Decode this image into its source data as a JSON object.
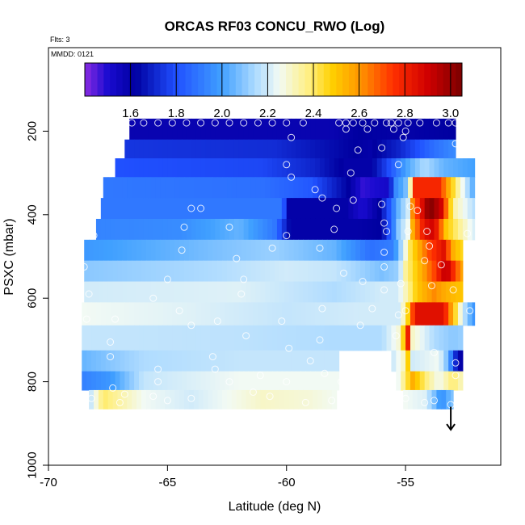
{
  "chart_data": {
    "type": "heatmap",
    "title": "ORCAS RF03 CONCU_RWO (Log)",
    "flts_note": "Flts: 3",
    "date_note": "MMDD: 0121",
    "xlabel": "Latitude (deg N)",
    "ylabel": "PSXC (mbar)",
    "xlim": [
      -70,
      -51
    ],
    "ylim": [
      1000,
      0
    ],
    "x_ticks": [
      -70,
      -65,
      -60,
      -55
    ],
    "y_ticks": [
      200,
      400,
      600,
      800,
      1000
    ],
    "colorbar": {
      "range": [
        1.4,
        3.05
      ],
      "ticks": [
        1.6,
        1.8,
        2.0,
        2.2,
        2.4,
        2.6,
        2.8,
        3.0
      ],
      "tick_labels": [
        "1.6",
        "1.8",
        "2.0",
        "2.2",
        "2.4",
        "2.6",
        "2.8",
        "3.0"
      ],
      "stops": [
        {
          "v": 1.4,
          "c": "#8a2be2"
        },
        {
          "v": 1.5,
          "c": "#1a0bd0"
        },
        {
          "v": 1.62,
          "c": "#0000a0"
        },
        {
          "v": 1.8,
          "c": "#2050ff"
        },
        {
          "v": 2.0,
          "c": "#40a0ff"
        },
        {
          "v": 2.15,
          "c": "#b0dcff"
        },
        {
          "v": 2.25,
          "c": "#f2faf4"
        },
        {
          "v": 2.38,
          "c": "#ffef80"
        },
        {
          "v": 2.48,
          "c": "#ffd000"
        },
        {
          "v": 2.6,
          "c": "#ff9800"
        },
        {
          "v": 2.75,
          "c": "#ff3000"
        },
        {
          "v": 2.9,
          "c": "#d00000"
        },
        {
          "v": 3.05,
          "c": "#7a0000"
        }
      ]
    },
    "rows": [
      {
        "p": [
          170,
          220
        ],
        "x": [
          -66.6,
          -52.9
        ],
        "k": [
          -66.6,
          1.58,
          -58,
          1.58,
          -57,
          1.62,
          -55,
          1.6,
          -52.9,
          1.62
        ]
      },
      {
        "p": [
          220,
          265
        ],
        "x": [
          -66.8,
          -52.9
        ],
        "k": [
          -66.8,
          1.74,
          -60.5,
          1.72,
          -58.5,
          1.66,
          -56.5,
          1.6,
          -55.3,
          1.7,
          -53.8,
          1.88,
          -52.9,
          1.95
        ]
      },
      {
        "p": [
          265,
          310
        ],
        "x": [
          -67.2,
          -52.1
        ],
        "k": [
          -67.2,
          1.8,
          -61,
          1.78,
          -58.8,
          1.7,
          -57.5,
          1.6,
          -56.5,
          1.6,
          -55.6,
          1.82,
          -55,
          2.0,
          -54.2,
          2.15,
          -53.4,
          2.05,
          -52.1,
          2.0
        ]
      },
      {
        "p": [
          310,
          360
        ],
        "x": [
          -67.7,
          -52.1
        ],
        "k": [
          -67.7,
          1.9,
          -61,
          1.88,
          -59,
          1.82,
          -57.4,
          1.62,
          -56.8,
          1.48,
          -55.8,
          1.52,
          -55.4,
          1.95,
          -54.9,
          2.1,
          -54.6,
          2.78,
          -53.6,
          2.78,
          -53.0,
          2.45,
          -52.1,
          2.0
        ]
      },
      {
        "p": [
          360,
          410
        ],
        "x": [
          -67.8,
          -52.1
        ],
        "k": [
          -67.8,
          1.9,
          -60.2,
          1.9,
          -59.9,
          1.6,
          -57.5,
          1.6,
          -56.8,
          1.5,
          -56.1,
          1.62,
          -55.7,
          1.8,
          -55.3,
          2.05,
          -54.9,
          2.2,
          -54.7,
          2.62,
          -54.0,
          3.05,
          -53.5,
          2.9,
          -53.0,
          2.35,
          -52.1,
          2.15
        ]
      },
      {
        "p": [
          410,
          460
        ],
        "x": [
          -68.0,
          -52.1
        ],
        "k": [
          -68.0,
          1.93,
          -64.5,
          1.95,
          -62,
          2.05,
          -60.5,
          1.9,
          -59.8,
          1.6,
          -57,
          1.6,
          -56,
          1.62,
          -55.6,
          1.85,
          -55.3,
          2.1,
          -54.9,
          2.25,
          -54.7,
          2.55,
          -54.2,
          2.85,
          -53.8,
          2.9,
          -53.3,
          2.5,
          -52.1,
          2.2
        ]
      },
      {
        "p": [
          460,
          510
        ],
        "x": [
          -68.5,
          -52.6
        ],
        "k": [
          -68.5,
          1.98,
          -63,
          2.08,
          -60.5,
          2.12,
          -58,
          2.05,
          -56.5,
          1.88,
          -55.5,
          1.92,
          -55.1,
          2.2,
          -54.8,
          2.42,
          -54.0,
          2.72,
          -53.4,
          2.85,
          -53.0,
          2.55,
          -52.6,
          2.45
        ]
      },
      {
        "p": [
          510,
          560
        ],
        "x": [
          -68.5,
          -52.6
        ],
        "k": [
          -68.5,
          2.1,
          -63,
          2.15,
          -60,
          2.2,
          -58,
          2.18,
          -56,
          2.08,
          -55.3,
          2.12,
          -55.0,
          2.35,
          -54.5,
          2.5,
          -53.8,
          2.72,
          -53.3,
          2.95,
          -52.6,
          2.55
        ]
      },
      {
        "p": [
          560,
          610
        ],
        "x": [
          -68.5,
          -52.6
        ],
        "k": [
          -68.5,
          2.2,
          -62,
          2.22,
          -58,
          2.15,
          -56,
          2.2,
          -55.3,
          2.2,
          -54.9,
          2.35,
          -54.5,
          2.5,
          -53.8,
          2.62,
          -53.3,
          2.55,
          -52.6,
          2.5
        ]
      },
      {
        "p": [
          610,
          665
        ],
        "x": [
          -68.6,
          -52.1
        ],
        "k": [
          -68.6,
          2.25,
          -64,
          2.22,
          -60,
          2.18,
          -57,
          2.2,
          -55.3,
          2.2,
          -55.0,
          2.35,
          -54.6,
          2.85,
          -53.4,
          2.85,
          -52.6,
          2.2,
          -52.1,
          1.95
        ]
      },
      {
        "p": [
          665,
          725
        ],
        "x": [
          -68.6,
          -52.6
        ],
        "k": [
          -68.6,
          2.18,
          -62,
          2.17,
          -58,
          2.15,
          -56,
          2.15,
          -55.2,
          2.3,
          -54.9,
          2.8,
          -54.7,
          2.3,
          -53.8,
          2.15,
          -53,
          2.1,
          -52.6,
          2.12
        ]
      },
      {
        "p": [
          725,
          775
        ],
        "x": [
          -68.6,
          -52.6
        ],
        "k": [
          -68.6,
          2.05,
          -66,
          2.15,
          -62,
          2.18,
          -57.8,
          2.18,
          -57.4,
          -1,
          -57.1,
          -1,
          -55.5,
          2.2,
          -55.1,
          2.3,
          -54.9,
          2.48,
          -54.7,
          2.2,
          -53.6,
          2.25,
          -53.2,
          2.05,
          -52.8,
          1.6,
          -52.6,
          1.6
        ]
      },
      {
        "p": [
          775,
          820
        ],
        "x": [
          -68.6,
          -52.6
        ],
        "k": [
          -68.6,
          1.92,
          -67.4,
          1.98,
          -66,
          2.18,
          -62,
          2.25,
          -57.8,
          2.25,
          -57.4,
          -1,
          -57.1,
          -1,
          -55.3,
          2.25,
          -55.0,
          2.4,
          -54.7,
          2.55,
          -54.2,
          2.4,
          -53.6,
          2.25,
          -53.0,
          2.4,
          -52.6,
          2.3
        ]
      },
      {
        "p": [
          820,
          865
        ],
        "x": [
          -68.3,
          -53.0
        ],
        "k": [
          -68.3,
          2.15,
          -67.7,
          2.4,
          -66,
          2.25,
          -64,
          2.2,
          -61,
          2.3,
          -59,
          2.28,
          -57.8,
          2.25,
          -57.4,
          -1,
          -57.1,
          -1,
          -55,
          2.25,
          -54.2,
          2.22,
          -53.8,
          2.08,
          -53.5,
          1.95,
          -53.0,
          2.1
        ]
      }
    ],
    "points": [
      [
        -66.5,
        180
      ],
      [
        -66.0,
        180
      ],
      [
        -65.4,
        180
      ],
      [
        -64.8,
        180
      ],
      [
        -64.2,
        180
      ],
      [
        -63.6,
        180
      ],
      [
        -63.0,
        180
      ],
      [
        -62.4,
        180
      ],
      [
        -61.8,
        180
      ],
      [
        -61.2,
        180
      ],
      [
        -60.6,
        180
      ],
      [
        -60.0,
        180
      ],
      [
        -59.3,
        180
      ],
      [
        -57.8,
        180
      ],
      [
        -57.5,
        180
      ],
      [
        -57.2,
        180
      ],
      [
        -56.8,
        180
      ],
      [
        -56.3,
        180
      ],
      [
        -55.8,
        180
      ],
      [
        -55.6,
        180
      ],
      [
        -55.3,
        180
      ],
      [
        -54.9,
        180
      ],
      [
        -54.4,
        180
      ],
      [
        -53.7,
        180
      ],
      [
        -53.2,
        180
      ],
      [
        -52.9,
        180
      ],
      [
        -57.5,
        195
      ],
      [
        -56.6,
        195
      ],
      [
        -55.5,
        195
      ],
      [
        -55.0,
        200
      ],
      [
        -59.8,
        215
      ],
      [
        -55.1,
        215
      ],
      [
        -52.9,
        230
      ],
      [
        -57.0,
        245
      ],
      [
        -56.0,
        240
      ],
      [
        -52.6,
        255
      ],
      [
        -60.0,
        280
      ],
      [
        -57.3,
        300
      ],
      [
        -55.3,
        280
      ],
      [
        -59.8,
        310
      ],
      [
        -58.8,
        340
      ],
      [
        -58.5,
        360
      ],
      [
        -57.2,
        365
      ],
      [
        -56.0,
        375
      ],
      [
        -54.8,
        380
      ],
      [
        -54.5,
        390
      ],
      [
        -57.9,
        385
      ],
      [
        -64.0,
        385
      ],
      [
        -63.6,
        385
      ],
      [
        -55.9,
        420
      ],
      [
        -55.8,
        440
      ],
      [
        -54.1,
        440
      ],
      [
        -64.3,
        430
      ],
      [
        -62.4,
        430
      ],
      [
        -60.0,
        450
      ],
      [
        -58.0,
        435
      ],
      [
        -54.9,
        440
      ],
      [
        -68.1,
        450
      ],
      [
        -52.4,
        445
      ],
      [
        -64.4,
        485
      ],
      [
        -60.6,
        480
      ],
      [
        -58.6,
        480
      ],
      [
        -54.0,
        475
      ],
      [
        -55.9,
        490
      ],
      [
        -54.2,
        510
      ],
      [
        -62.1,
        505
      ],
      [
        -53.5,
        520
      ],
      [
        -55.9,
        525
      ],
      [
        -68.5,
        525
      ],
      [
        -57.6,
        540
      ],
      [
        -65.0,
        555
      ],
      [
        -61.8,
        555
      ],
      [
        -56.8,
        560
      ],
      [
        -55.2,
        565
      ],
      [
        -53.0,
        580
      ],
      [
        -53.9,
        570
      ],
      [
        -55.9,
        580
      ],
      [
        -68.3,
        590
      ],
      [
        -61.9,
        590
      ],
      [
        -65.6,
        600
      ],
      [
        -64.5,
        630
      ],
      [
        -58.5,
        625
      ],
      [
        -56.4,
        625
      ],
      [
        -55.0,
        630
      ],
      [
        -52.3,
        630
      ],
      [
        -55.3,
        640
      ],
      [
        -68.4,
        650
      ],
      [
        -67.2,
        650
      ],
      [
        -62.9,
        655
      ],
      [
        -60.2,
        655
      ],
      [
        -56.9,
        665
      ],
      [
        -64.0,
        665
      ],
      [
        -61.7,
        690
      ],
      [
        -58.6,
        700
      ],
      [
        -55.4,
        690
      ],
      [
        -67.4,
        705
      ],
      [
        -59.9,
        720
      ],
      [
        -53.8,
        730
      ],
      [
        -67.4,
        740
      ],
      [
        -63.1,
        740
      ],
      [
        -59.0,
        750
      ],
      [
        -56.0,
        750
      ],
      [
        -52.9,
        755
      ],
      [
        -65.4,
        770
      ],
      [
        -63.0,
        770
      ],
      [
        -61.1,
        785
      ],
      [
        -58.4,
        780
      ],
      [
        -55.6,
        785
      ],
      [
        -52.9,
        785
      ],
      [
        -65.4,
        800
      ],
      [
        -62.4,
        800
      ],
      [
        -60.0,
        800
      ],
      [
        -57.7,
        800
      ],
      [
        -67.3,
        815
      ],
      [
        -65.6,
        835
      ],
      [
        -61.4,
        825
      ],
      [
        -60.7,
        835
      ],
      [
        -57.0,
        845
      ],
      [
        -55.0,
        840
      ],
      [
        -53.8,
        845
      ],
      [
        -68.2,
        840
      ],
      [
        -67.0,
        850
      ],
      [
        -66.8,
        830
      ],
      [
        -65.0,
        845
      ],
      [
        -64.0,
        840
      ],
      [
        -59.2,
        850
      ],
      [
        -58.1,
        845
      ],
      [
        -55.4,
        835
      ],
      [
        -54.2,
        850
      ],
      [
        -53.1,
        855
      ]
    ],
    "arrow": {
      "x": -53.1,
      "p_from": 860,
      "p_to": 915
    }
  }
}
